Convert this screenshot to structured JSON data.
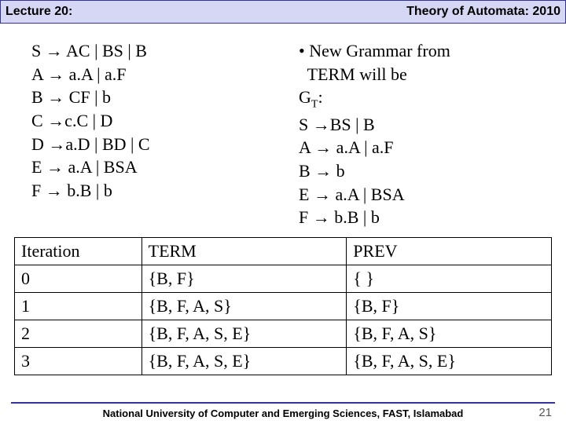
{
  "header": {
    "left": "Lecture 20:",
    "right": "Theory of Automata: 2010"
  },
  "grammar_left": {
    "lines": [
      "S → AC | BS | B",
      "A → a.A | a.F",
      "B → CF | b",
      "C →c.C | D",
      "D →a.D | BD | C",
      "E → a.A | BSA",
      "F → b.B | b"
    ]
  },
  "grammar_right": {
    "bullet_line1": "• New Grammar from",
    "bullet_line2": "  TERM will be",
    "gt_label_pre": "G",
    "gt_label_sub": "T",
    "gt_label_post": ":",
    "lines": [
      "S →BS | B",
      "A → a.A | a.F",
      "B → b",
      "E → a.A | BSA",
      "F → b.B | b"
    ]
  },
  "table": {
    "headers": [
      "Iteration",
      "TERM",
      "PREV"
    ],
    "rows": [
      [
        "0",
        "{B, F}",
        "{ }"
      ],
      [
        "1",
        "{B, F, A, S}",
        "{B, F}"
      ],
      [
        "2",
        "{B, F, A, S, E}",
        "{B, F, A, S}"
      ],
      [
        "3",
        "{B, F, A, S, E}",
        "{B, F, A, S, E}"
      ]
    ]
  },
  "footer": {
    "text": "National University of Computer and Emerging Sciences, FAST, Islamabad",
    "page": "21"
  }
}
